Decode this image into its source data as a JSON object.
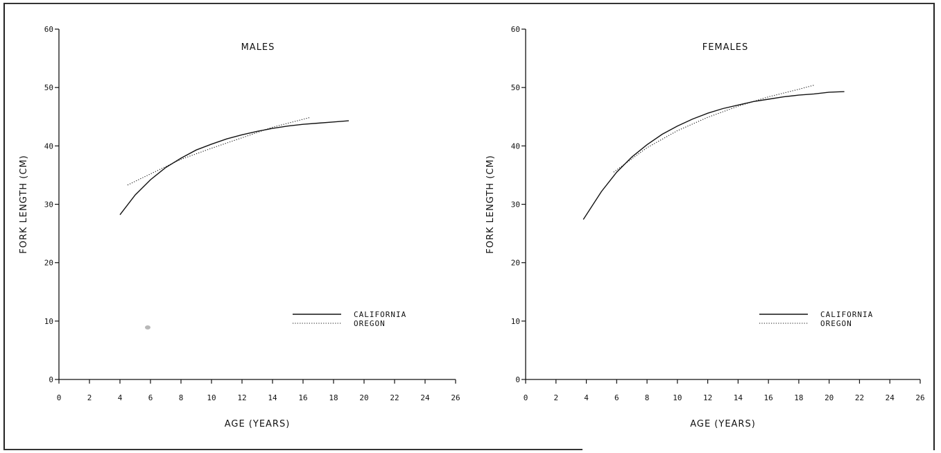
{
  "chart_data": [
    {
      "type": "line",
      "title": "MALES",
      "xlabel": "AGE (YEARS)",
      "ylabel": "FORK LENGTH (CM)",
      "xlim": [
        0,
        26
      ],
      "ylim": [
        0,
        60
      ],
      "xticks": [
        "0",
        "2",
        "4",
        "6",
        "8",
        "10",
        "12",
        "14",
        "16",
        "18",
        "20",
        "22",
        "24",
        "26"
      ],
      "yticks": [
        "0",
        "10",
        "20",
        "30",
        "40",
        "50",
        "60"
      ],
      "legend_position": "lower-right",
      "series": [
        {
          "name": "CALIFORNIA",
          "style": "solid",
          "x": [
            4,
            5,
            6,
            7,
            8,
            9,
            10,
            11,
            12,
            13,
            14,
            15,
            16,
            17,
            18,
            19
          ],
          "y": [
            28.2,
            31.6,
            34.2,
            36.3,
            37.9,
            39.3,
            40.3,
            41.2,
            41.9,
            42.5,
            43.0,
            43.4,
            43.7,
            43.9,
            44.1,
            44.3
          ]
        },
        {
          "name": "OREGON",
          "style": "dotted",
          "x": [
            4.5,
            6,
            8,
            10,
            12,
            14,
            16.5
          ],
          "y": [
            33.3,
            35.2,
            37.7,
            39.6,
            41.4,
            43.2,
            44.9
          ]
        }
      ]
    },
    {
      "type": "line",
      "title": "FEMALES",
      "xlabel": "AGE (YEARS)",
      "ylabel": "FORK LENGTH (CM)",
      "xlim": [
        0,
        26
      ],
      "ylim": [
        0,
        60
      ],
      "xticks": [
        "0",
        "2",
        "4",
        "6",
        "8",
        "10",
        "12",
        "14",
        "16",
        "18",
        "20",
        "22",
        "24",
        "26"
      ],
      "yticks": [
        "0",
        "10",
        "20",
        "30",
        "40",
        "50",
        "60"
      ],
      "legend_position": "lower-right",
      "series": [
        {
          "name": "CALIFORNIA",
          "style": "solid",
          "x": [
            3.8,
            5,
            6,
            7,
            8,
            9,
            10,
            11,
            12,
            13,
            14,
            15,
            16,
            17,
            18,
            19,
            20,
            21
          ],
          "y": [
            27.4,
            32.2,
            35.5,
            38.1,
            40.2,
            42.0,
            43.4,
            44.6,
            45.6,
            46.4,
            47.0,
            47.6,
            48.0,
            48.4,
            48.7,
            48.9,
            49.2,
            49.3
          ]
        },
        {
          "name": "OREGON",
          "style": "dotted",
          "x": [
            5.8,
            8,
            10,
            12,
            14,
            16,
            18,
            19
          ],
          "y": [
            35.5,
            39.7,
            42.6,
            44.9,
            46.8,
            48.4,
            49.7,
            50.4
          ]
        }
      ]
    }
  ]
}
